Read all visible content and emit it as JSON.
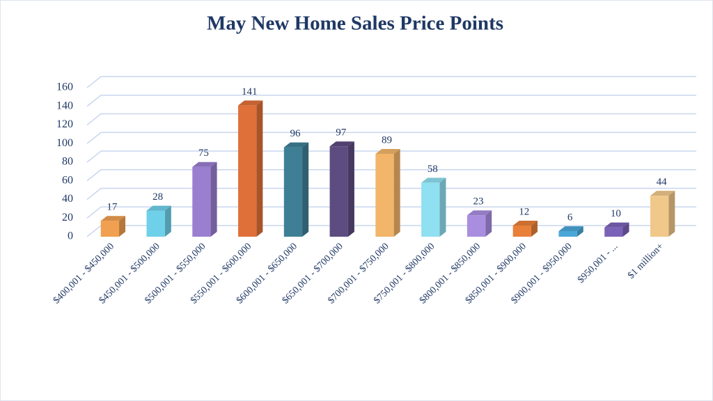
{
  "chart_data": {
    "type": "bar",
    "title": "May New Home Sales Price Points",
    "categories": [
      "$400,001 - $450,000",
      "$450,001 - $500,000",
      "$500,001 - $550,000",
      "$550,001 - $600,000",
      "$600,001 - $650,000",
      "$650,001 - $700,000",
      "$700,001 - $750,000",
      "$750,001 - $800,000",
      "$800,001 - $850,000",
      "$850,001 - $900,000",
      "$900,001 - $950,000",
      "$950,001 - ...",
      "$1 million+"
    ],
    "values": [
      17,
      28,
      75,
      141,
      96,
      97,
      89,
      58,
      23,
      12,
      6,
      10,
      44
    ],
    "colors": [
      "#f0a050",
      "#6fd0ea",
      "#9a7fd0",
      "#e0703a",
      "#3f7f96",
      "#5c4c80",
      "#f2b56a",
      "#8fe0f0",
      "#a98ee0",
      "#e8803a",
      "#4aa8d8",
      "#7a62b8",
      "#f0c88a"
    ],
    "ylim": [
      0,
      160
    ],
    "yticks": [
      0,
      20,
      40,
      60,
      80,
      100,
      120,
      140,
      160
    ],
    "grid": true
  }
}
